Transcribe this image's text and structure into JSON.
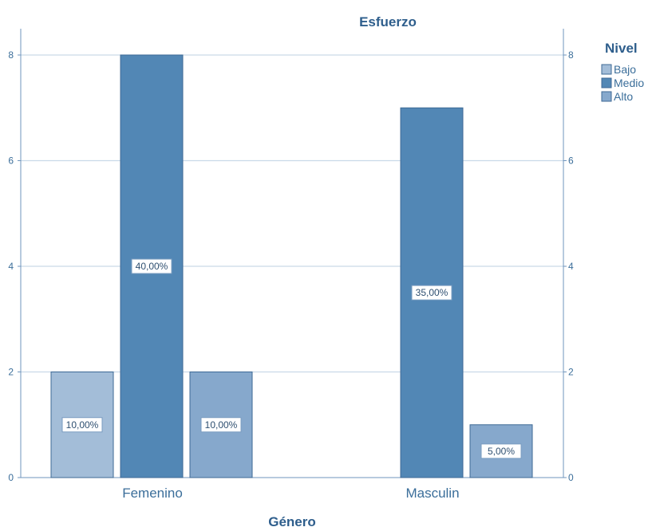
{
  "chart_data": {
    "type": "bar",
    "title": "Esfuerzo",
    "xlabel": "Género",
    "ylabel": "",
    "ylim": [
      0,
      8
    ],
    "yticks": [
      0,
      2,
      4,
      6,
      8
    ],
    "categories": [
      "Femenino",
      "Masculin"
    ],
    "legend_title": "Nivel",
    "legend_position": "top-right",
    "grid": true,
    "series": [
      {
        "name": "Bajo",
        "color": "#a3bdd8",
        "values": [
          2,
          null
        ],
        "labels": [
          "10,00%",
          null
        ]
      },
      {
        "name": "Medio",
        "color": "#5287b5",
        "values": [
          8,
          7
        ],
        "labels": [
          "40,00%",
          "35,00%"
        ]
      },
      {
        "name": "Alto",
        "color": "#86a8cc",
        "values": [
          2,
          1
        ],
        "labels": [
          "10,00%",
          "5,00%"
        ]
      }
    ]
  }
}
